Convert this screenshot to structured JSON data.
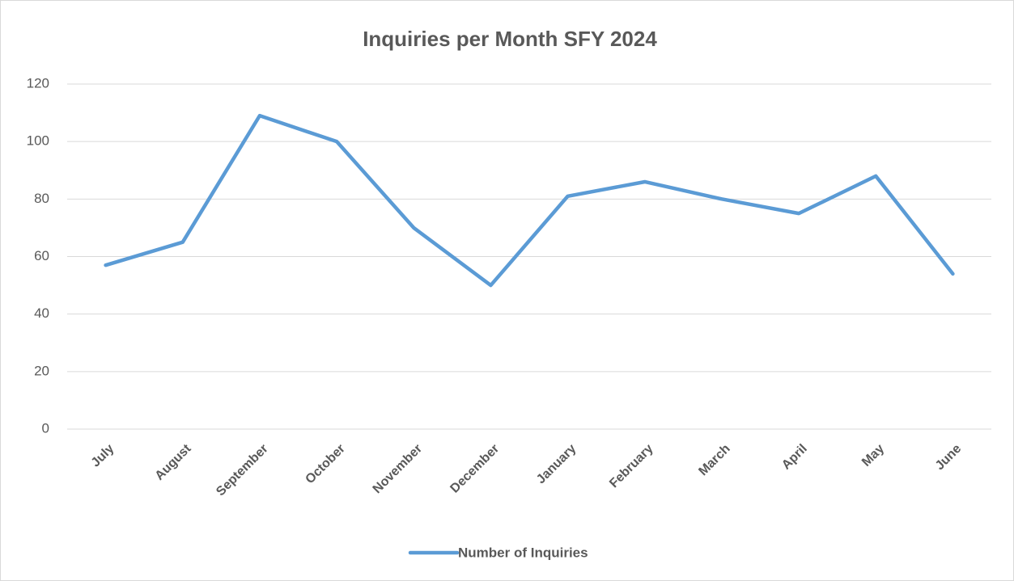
{
  "chart_data": {
    "type": "line",
    "title": "Inquiries per Month SFY 2024",
    "categories": [
      "July",
      "August",
      "September",
      "October",
      "November",
      "December",
      "January",
      "February",
      "March",
      "April",
      "May",
      "June"
    ],
    "series": [
      {
        "name": "Number of Inquiries",
        "color": "#5b9bd5",
        "values": [
          57,
          65,
          109,
          100,
          70,
          50,
          81,
          86,
          80,
          75,
          88,
          54
        ]
      }
    ],
    "ylim": [
      0,
      120
    ],
    "yticks": [
      0,
      20,
      40,
      60,
      80,
      100,
      120
    ],
    "grid": true,
    "legend": "bottom"
  }
}
